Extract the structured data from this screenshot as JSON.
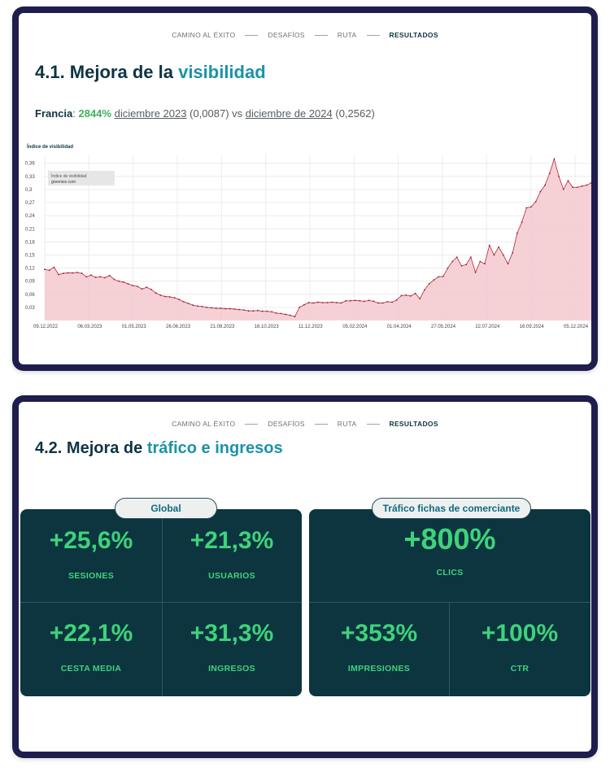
{
  "nav": [
    "CAMINO AL ÉXITO",
    "DESAFÍOS",
    "RUTA",
    "RESULTADOS"
  ],
  "section1": {
    "title_prefix": "4.1. Mejora de la ",
    "title_accent": "visibilidad",
    "country": "Francia",
    "pct": "2844%",
    "from_label": "diciembre 2023",
    "from_value": "(0,0087)",
    "vs": "vs",
    "to_label": "diciembre de 2024",
    "to_value": "(0,2562)"
  },
  "section2": {
    "title_prefix": "4.2. Mejora de ",
    "title_accent": "tráfico e ingresos",
    "global": {
      "tab": "Global",
      "cells": [
        {
          "value": "+25,6%",
          "label": "SESIONES"
        },
        {
          "value": "+21,3%",
          "label": "USUARIOS"
        },
        {
          "value": "+22,1%",
          "label": "CESTA MEDIA"
        },
        {
          "value": "+31,3%",
          "label": "INGRESOS"
        }
      ]
    },
    "merchant": {
      "tab": "Tráfico fichas de comerciante",
      "top": {
        "value": "+800%",
        "label": "CLICS"
      },
      "cells": [
        {
          "value": "+353%",
          "label": "IMPRESIONES"
        },
        {
          "value": "+100%",
          "label": "CTR"
        }
      ]
    }
  },
  "colors": {
    "navy": "#0e3442",
    "teal": "#1b93a6",
    "green": "#3fd27a",
    "panel": "#0c3540",
    "line": "#c0394b",
    "fill": "#f3c9cf"
  },
  "chart_data": {
    "type": "area",
    "title": "Índice de visibilidad",
    "legend": [
      "Índice de visibilidad",
      "greenice.com"
    ],
    "legend_position": "top-left",
    "grid": true,
    "ylim": [
      0,
      0.38
    ],
    "yticks": [
      "0,36",
      "0,33",
      "0,3",
      "0,27",
      "0,24",
      "0,21",
      "0,18",
      "0,15",
      "0,12",
      "0,09",
      "0,06",
      "0,03"
    ],
    "xticks": [
      "09.12.2022",
      "06.03.2023",
      "01.05.2023",
      "26.06.2023",
      "21.08.2023",
      "16.10.2023",
      "11.12.2023",
      "05.02.2024",
      "01.04.2024",
      "27.05.2024",
      "22.07.2024",
      "16.09.2024",
      "05.12.2024"
    ],
    "series": [
      {
        "name": "greenice.com",
        "values": [
          0.117,
          0.115,
          0.122,
          0.105,
          0.108,
          0.109,
          0.109,
          0.11,
          0.108,
          0.1,
          0.104,
          0.099,
          0.1,
          0.098,
          0.103,
          0.094,
          0.09,
          0.088,
          0.084,
          0.08,
          0.078,
          0.072,
          0.076,
          0.071,
          0.063,
          0.058,
          0.055,
          0.054,
          0.052,
          0.048,
          0.043,
          0.039,
          0.035,
          0.033,
          0.032,
          0.03,
          0.029,
          0.028,
          0.028,
          0.027,
          0.027,
          0.026,
          0.025,
          0.024,
          0.022,
          0.022,
          0.023,
          0.021,
          0.021,
          0.02,
          0.017,
          0.016,
          0.014,
          0.012,
          0.009,
          0.03,
          0.036,
          0.041,
          0.04,
          0.042,
          0.041,
          0.041,
          0.042,
          0.041,
          0.04,
          0.045,
          0.045,
          0.046,
          0.045,
          0.044,
          0.046,
          0.044,
          0.04,
          0.04,
          0.043,
          0.042,
          0.047,
          0.057,
          0.058,
          0.056,
          0.062,
          0.05,
          0.07,
          0.084,
          0.093,
          0.1,
          0.101,
          0.12,
          0.135,
          0.145,
          0.125,
          0.128,
          0.145,
          0.11,
          0.135,
          0.13,
          0.172,
          0.15,
          0.168,
          0.15,
          0.13,
          0.155,
          0.2,
          0.225,
          0.258,
          0.26,
          0.272,
          0.295,
          0.31,
          0.337,
          0.37,
          0.33,
          0.3,
          0.32,
          0.305,
          0.305,
          0.308,
          0.31,
          0.315
        ]
      }
    ]
  }
}
